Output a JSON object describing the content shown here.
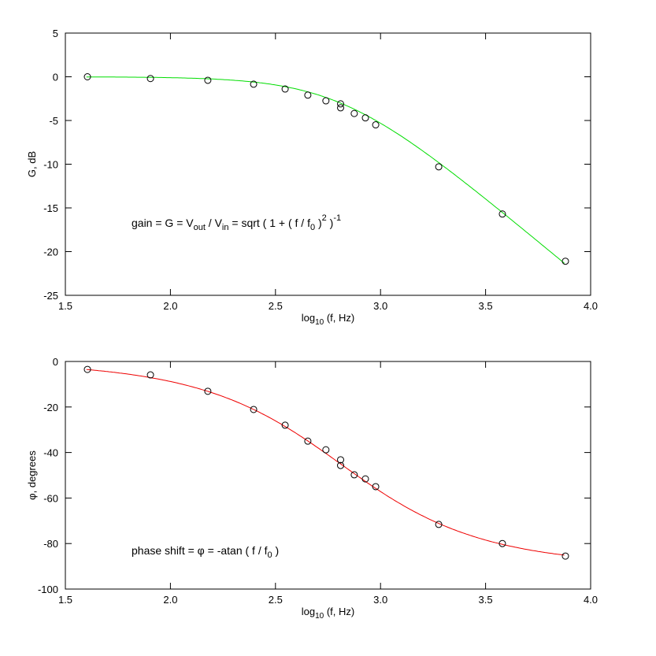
{
  "chart_data": [
    {
      "type": "line",
      "title": "",
      "xlabel": "log10 (f, Hz)",
      "xlabel_parts": [
        "log",
        "10",
        " (f, Hz)"
      ],
      "ylabel": "G, dB",
      "xlim": [
        1.5,
        4.0
      ],
      "ylim": [
        -25,
        5
      ],
      "xticks": [
        "1.5",
        "2.0",
        "2.5",
        "3.0",
        "3.5",
        "4.0"
      ],
      "yticks": [
        "5",
        "0",
        "-5",
        "-10",
        "-15",
        "-20",
        "-25"
      ],
      "grid": false,
      "curve_color": "#00dd00",
      "model": "gain_db",
      "log10_f0": 2.81,
      "annotation_parts": [
        "gain = G = V",
        "out",
        " / V",
        "in",
        " = sqrt ( 1 + ( f / f",
        "0",
        " )",
        "2",
        " )",
        "-1"
      ],
      "points": {
        "x": [
          1.605,
          1.905,
          2.178,
          2.396,
          2.546,
          2.654,
          2.74,
          2.81,
          2.81,
          2.875,
          2.928,
          2.977,
          3.277,
          3.58,
          3.88
        ],
        "y": [
          0.0,
          -0.2,
          -0.4,
          -0.85,
          -1.4,
          -2.1,
          -2.75,
          -3.1,
          -3.55,
          -4.2,
          -4.7,
          -5.5,
          -10.3,
          -15.7,
          -21.1
        ]
      }
    },
    {
      "type": "line",
      "title": "",
      "xlabel": "log10 (f, Hz)",
      "xlabel_parts": [
        "log",
        "10",
        " (f, Hz)"
      ],
      "ylabel": "φ, degrees",
      "xlim": [
        1.5,
        4.0
      ],
      "ylim": [
        -100,
        0
      ],
      "xticks": [
        "1.5",
        "2.0",
        "2.5",
        "3.0",
        "3.5",
        "4.0"
      ],
      "yticks": [
        "0",
        "-20",
        "-40",
        "-60",
        "-80",
        "-100"
      ],
      "grid": false,
      "curve_color": "#ee0000",
      "model": "phase_deg",
      "log10_f0": 2.81,
      "annotation_parts": [
        "phase shift = φ = -atan ( f / f",
        "0",
        " )"
      ],
      "points": {
        "x": [
          1.605,
          1.905,
          2.178,
          2.396,
          2.546,
          2.654,
          2.74,
          2.81,
          2.81,
          2.875,
          2.928,
          2.977,
          3.277,
          3.58,
          3.88
        ],
        "y": [
          -3.5,
          -5.9,
          -13.1,
          -21.1,
          -28,
          -35,
          -38.8,
          -43.2,
          -45.7,
          -49.8,
          -51.6,
          -55,
          -71.6,
          -80,
          -85.5
        ]
      }
    }
  ]
}
